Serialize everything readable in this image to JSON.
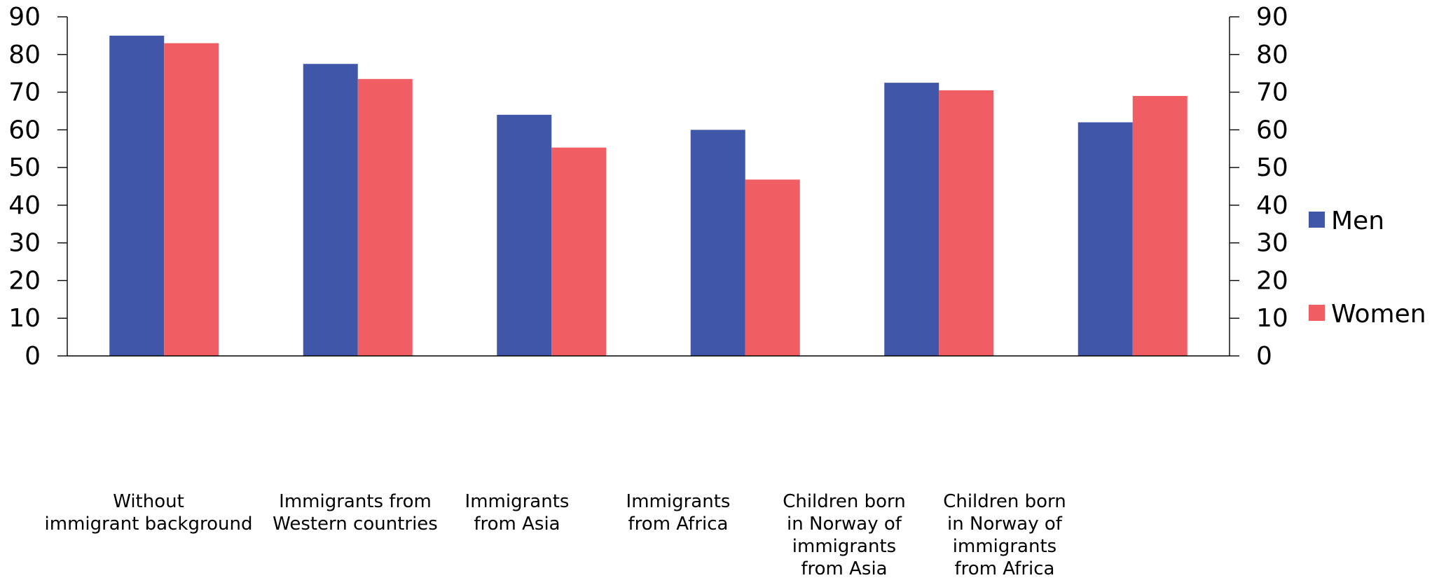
{
  "chart_data": {
    "type": "bar",
    "categories": [
      [
        "Without",
        "immigrant background"
      ],
      [
        "Immigrants from",
        "Western countries"
      ],
      [
        "Immigrants",
        "from Asia"
      ],
      [
        "Immigrants",
        "from Africa"
      ],
      [
        "Children born",
        "in Norway of",
        "immigrants",
        "from Asia"
      ],
      [
        "Children born",
        "in Norway of",
        "immigrants",
        "from Africa"
      ]
    ],
    "series": [
      {
        "name": "Men",
        "color": "#4056a8",
        "values": [
          85,
          77.5,
          64,
          60,
          72.5,
          62
        ]
      },
      {
        "name": "Women",
        "color": "#f05d63",
        "values": [
          83,
          73.5,
          55.3,
          46.8,
          70.5,
          69
        ]
      }
    ],
    "ylim": [
      0,
      90
    ],
    "yticks": [
      0,
      10,
      20,
      30,
      40,
      50,
      60,
      70,
      80,
      90
    ],
    "y_axis_left": true,
    "y_axis_right": true,
    "grid": false,
    "legend_position": "right"
  }
}
